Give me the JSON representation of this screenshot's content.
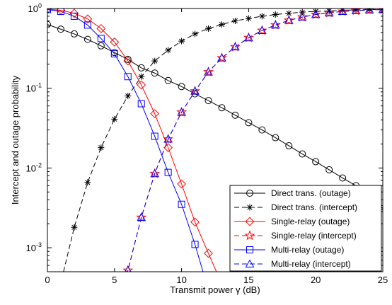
{
  "chart_data": {
    "type": "line",
    "xlabel": "Transmit power γ (dB)",
    "ylabel": "Intercept and outage probability",
    "xlim": [
      0,
      25
    ],
    "ylim": [
      0.0005,
      1
    ],
    "yscale": "log",
    "grid": false,
    "legend_position": "bottom-right",
    "x_ticks": [
      0,
      5,
      10,
      15,
      20,
      25
    ],
    "x_tick_labels": [
      "0",
      "5",
      "10",
      "15",
      "20",
      "25"
    ],
    "y_ticks": [
      0.001,
      0.01,
      0.1,
      1
    ],
    "y_tick_labels": [
      "10^-3",
      "10^-2",
      "10^-1",
      "10^0"
    ],
    "series": [
      {
        "name": "Direct trans. (outage)",
        "color": "#000000",
        "dash": "solid",
        "marker": "circle",
        "x": [
          0,
          1,
          2,
          3,
          4,
          5,
          6,
          7,
          8,
          9,
          10,
          11,
          12,
          13,
          14,
          15,
          16,
          17,
          18,
          19,
          20,
          21,
          22,
          23,
          24,
          25
        ],
        "y": [
          0.63,
          0.55,
          0.48,
          0.41,
          0.34,
          0.28,
          0.23,
          0.18,
          0.155,
          0.125,
          0.105,
          0.085,
          0.07,
          0.057,
          0.046,
          0.037,
          0.03,
          0.024,
          0.019,
          0.015,
          0.012,
          0.0095,
          0.0075,
          0.006,
          0.0047,
          0.0031
        ]
      },
      {
        "name": "Direct trans. (intercept)",
        "color": "#000000",
        "dash": "dashed",
        "marker": "asterisk",
        "x": [
          1.2,
          2,
          3,
          4,
          5,
          6,
          7,
          8,
          9,
          10,
          11,
          12,
          13,
          14,
          15,
          16,
          17,
          18,
          19,
          20,
          21,
          22,
          23,
          24,
          25
        ],
        "y": [
          0.0005,
          0.0018,
          0.0066,
          0.018,
          0.041,
          0.08,
          0.14,
          0.22,
          0.3,
          0.39,
          0.48,
          0.56,
          0.63,
          0.7,
          0.75,
          0.8,
          0.84,
          0.87,
          0.9,
          0.92,
          0.93,
          0.95,
          0.96,
          0.97,
          0.97
        ]
      },
      {
        "name": "Single-relay (outage)",
        "color": "#ff0000",
        "dash": "solid",
        "marker": "diamond",
        "x": [
          0,
          1,
          2,
          3,
          4,
          5,
          6,
          7,
          8,
          9,
          10,
          11,
          12,
          12.6
        ],
        "y": [
          0.98,
          0.95,
          0.87,
          0.74,
          0.56,
          0.38,
          0.22,
          0.11,
          0.048,
          0.018,
          0.0063,
          0.0021,
          0.00085,
          0.0005
        ]
      },
      {
        "name": "Single-relay (intercept)",
        "color": "#ff0000",
        "dash": "dashed",
        "marker": "star",
        "x": [
          5.5,
          6,
          7,
          8,
          9,
          10,
          11,
          12,
          13,
          14,
          15,
          16,
          17,
          18,
          19,
          20,
          21,
          22,
          23,
          24,
          25
        ],
        "y": [
          0.0003,
          0.00052,
          0.0024,
          0.0085,
          0.023,
          0.05,
          0.092,
          0.16,
          0.24,
          0.33,
          0.43,
          0.53,
          0.62,
          0.71,
          0.78,
          0.84,
          0.88,
          0.92,
          0.94,
          0.96,
          0.97
        ]
      },
      {
        "name": "Multi-relay (outage)",
        "color": "#0000ff",
        "dash": "solid",
        "marker": "square",
        "x": [
          0,
          1,
          2,
          3,
          4,
          5,
          6,
          7,
          8,
          9,
          10,
          11,
          11.6
        ],
        "y": [
          0.97,
          0.92,
          0.8,
          0.62,
          0.42,
          0.27,
          0.14,
          0.064,
          0.025,
          0.0088,
          0.0035,
          0.0011,
          0.0005
        ]
      },
      {
        "name": "Multi-relay (intercept)",
        "color": "#0000ff",
        "dash": "dashed",
        "marker": "triangle",
        "x": [
          5.5,
          6,
          7,
          8,
          9,
          10,
          11,
          12,
          13,
          14,
          15,
          16,
          17,
          18,
          19,
          20,
          21,
          22,
          23,
          24,
          25
        ],
        "y": [
          0.0003,
          0.00052,
          0.0024,
          0.0085,
          0.023,
          0.05,
          0.092,
          0.16,
          0.24,
          0.33,
          0.43,
          0.53,
          0.62,
          0.71,
          0.78,
          0.84,
          0.88,
          0.92,
          0.94,
          0.96,
          0.97
        ]
      }
    ]
  }
}
